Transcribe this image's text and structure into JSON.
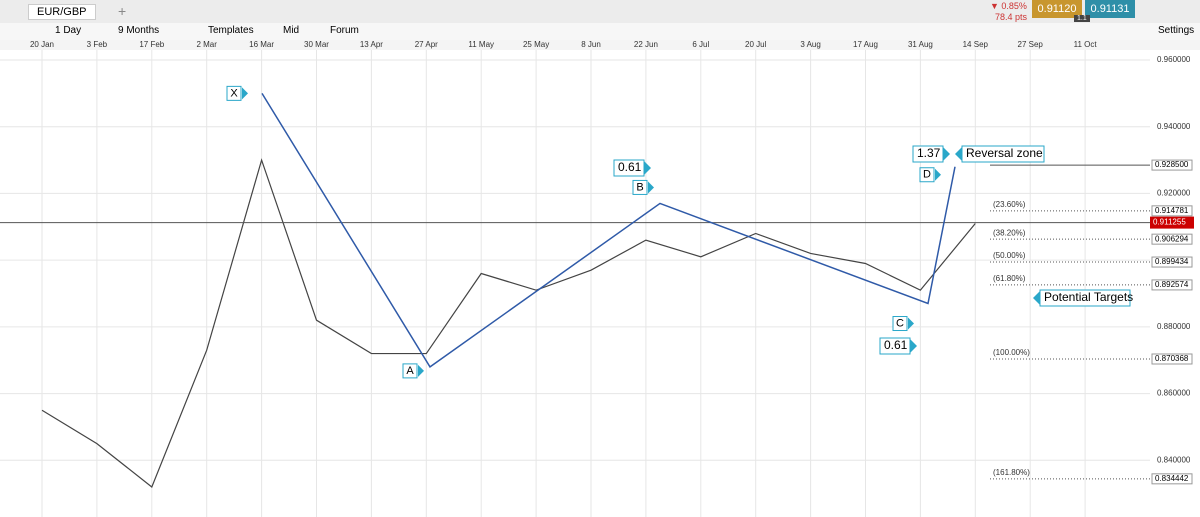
{
  "tab": {
    "symbol": "EUR/GBP"
  },
  "quote": {
    "change": "▼ 0.85%",
    "points": "78.4 pts",
    "bid": "0.91120",
    "ask": "0.91131",
    "spread": "1.1"
  },
  "toolbar": {
    "interval": "1 Day",
    "range": "9 Months",
    "templates": "Templates",
    "price_type": "Mid",
    "forum": "Forum",
    "settings": "Settings"
  },
  "chart_data": {
    "type": "line",
    "categories": [
      "20 Jan",
      "3 Feb",
      "17 Feb",
      "2 Mar",
      "16 Mar",
      "30 Mar",
      "13 Apr",
      "27 Apr",
      "11 May",
      "25 May",
      "8 Jun",
      "22 Jun",
      "6 Jul",
      "20 Jul",
      "3 Aug",
      "17 Aug",
      "31 Aug",
      "14 Sep",
      "27 Sep",
      "11 Oct"
    ],
    "values": [
      0.855,
      0.845,
      0.832,
      0.873,
      0.93,
      0.882,
      0.872,
      0.872,
      0.896,
      0.891,
      0.897,
      0.906,
      0.901,
      0.908,
      0.902,
      0.899,
      0.891,
      0.911,
      null,
      null
    ],
    "color": "#444444",
    "ylim": [
      0.823,
      0.963
    ],
    "yticks": [
      {
        "value": 0.96,
        "label": "0.960000"
      },
      {
        "value": 0.94,
        "label": "0.940000"
      },
      {
        "value": 0.92,
        "label": "0.920000"
      },
      {
        "value": 0.9,
        "label": "0.900000"
      },
      {
        "value": 0.88,
        "label": "0.880000"
      },
      {
        "value": 0.86,
        "label": "0.860000"
      },
      {
        "value": 0.84,
        "label": "0.840000"
      }
    ],
    "grid": true,
    "pattern": {
      "color": "#2f5aa8",
      "points": [
        {
          "label": "X",
          "value": 0.95
        },
        {
          "label": "A",
          "value": 0.868
        },
        {
          "label": "B",
          "value": 0.917
        },
        {
          "label": "C",
          "value": 0.887
        },
        {
          "label": "D",
          "value": 0.928
        }
      ]
    },
    "annotations": [
      "0.61",
      "0.61",
      "1.37",
      "Reversal zone",
      "Potential Targets"
    ],
    "levels": [
      {
        "price": {
          "value": 0.9285,
          "label": "0.928500"
        }
      },
      {
        "label": "(23.60%)",
        "price": {
          "value": 0.914781,
          "label": "0.914781"
        }
      },
      {
        "label": "(38.20%)",
        "price": {
          "value": 0.906294,
          "label": "0.906294"
        }
      },
      {
        "label": "(50.00%)",
        "price": {
          "value": 0.899434,
          "label": "0.899434"
        }
      },
      {
        "label": "(61.80%)",
        "price": {
          "value": 0.892574,
          "label": "0.892574"
        }
      },
      {
        "label": "(100.00%)",
        "price": {
          "value": 0.870368,
          "label": "0.870368"
        }
      },
      {
        "label": "(161.80%)",
        "price": {
          "value": 0.834442,
          "label": "0.834442"
        }
      }
    ],
    "last_price": {
      "value": 0.911255,
      "label": "0.911255"
    }
  }
}
